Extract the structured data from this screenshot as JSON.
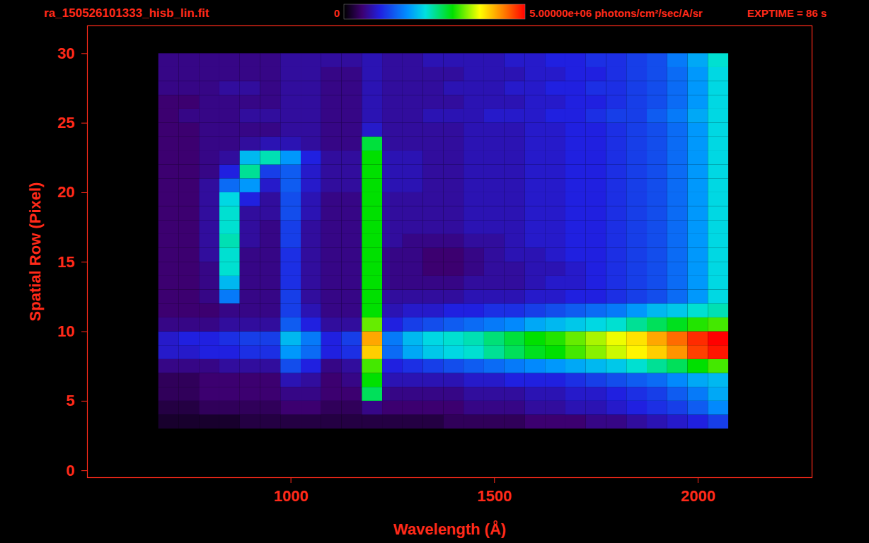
{
  "chart_data": {
    "type": "heatmap",
    "title": "ra_150526101333_hisb_lin.fit",
    "annotation": "EXPTIME = 86 s",
    "x_label": "Wavelength (Å)",
    "y_label": "Spatial Row (Pixel)",
    "xlim": [
      500,
      2280
    ],
    "xticks": [
      1000,
      1500,
      2000
    ],
    "ylim": [
      -0.5,
      32
    ],
    "yticks": [
      0,
      5,
      10,
      15,
      20,
      25,
      30
    ],
    "grid": false,
    "colorbar": {
      "range": [
        0,
        5000000
      ],
      "ticks": [
        0,
        {
          "value": 5000000,
          "label": "5.00000e+06"
        }
      ],
      "label": "photons/cm²/sec/A/sr"
    },
    "x_edges": [
      675,
      725,
      775,
      825,
      875,
      925,
      975,
      1025,
      1075,
      1125,
      1175,
      1225,
      1275,
      1325,
      1375,
      1425,
      1475,
      1525,
      1575,
      1625,
      1675,
      1725,
      1775,
      1825,
      1875,
      1925,
      1975,
      2025,
      2075
    ],
    "y_edges": [
      3,
      4,
      5,
      6,
      7,
      8,
      9,
      10,
      11,
      12,
      13,
      14,
      15,
      16,
      17,
      18,
      19,
      20,
      21,
      22,
      23,
      24,
      25,
      26,
      27,
      28,
      29,
      30
    ],
    "cells": [
      [
        200000.0,
        200000.0,
        200000.0,
        200000.0,
        300000.0,
        300000.0,
        300000.0,
        300000.0,
        300000.0,
        300000.0,
        300000.0,
        300000.0,
        300000.0,
        300000.0,
        400000.0,
        400000.0,
        400000.0,
        400000.0,
        500000.0,
        500000.0,
        500000.0,
        600000.0,
        600000.0,
        700000.0,
        800000.0,
        900000.0,
        1000000.0,
        1200000.0
      ],
      [
        300000.0,
        300000.0,
        400000.0,
        400000.0,
        400000.0,
        400000.0,
        500000.0,
        500000.0,
        400000.0,
        400000.0,
        600000.0,
        500000.0,
        500000.0,
        500000.0,
        500000.0,
        600000.0,
        600000.0,
        600000.0,
        700000.0,
        700000.0,
        800000.0,
        800000.0,
        900000.0,
        1000000.0,
        1100000.0,
        1200000.0,
        1400000.0,
        1700000.0
      ],
      [
        400000.0,
        400000.0,
        500000.0,
        500000.0,
        500000.0,
        500000.0,
        600000.0,
        600000.0,
        500000.0,
        500000.0,
        2700000.0,
        600000.0,
        600000.0,
        600000.0,
        600000.0,
        700000.0,
        700000.0,
        700000.0,
        800000.0,
        800000.0,
        900000.0,
        900000.0,
        1000000.0,
        1100000.0,
        1200000.0,
        1400000.0,
        1600000.0,
        1900000.0
      ],
      [
        400000.0,
        400000.0,
        500000.0,
        500000.0,
        500000.0,
        500000.0,
        800000.0,
        700000.0,
        500000.0,
        600000.0,
        3000000.0,
        800000.0,
        800000.0,
        800000.0,
        800000.0,
        900000.0,
        900000.0,
        1000000.0,
        1000000.0,
        1000000.0,
        1100000.0,
        1200000.0,
        1300000.0,
        1400000.0,
        1500000.0,
        1700000.0,
        1900000.0,
        2000000.0
      ],
      [
        600000.0,
        600000.0,
        600000.0,
        700000.0,
        700000.0,
        700000.0,
        1300000.0,
        1000000.0,
        600000.0,
        700000.0,
        3200000.0,
        1000000.0,
        1100000.0,
        1200000.0,
        1300000.0,
        1400000.0,
        1500000.0,
        1600000.0,
        1700000.0,
        1800000.0,
        1900000.0,
        2000000.0,
        2100000.0,
        2300000.0,
        2500000.0,
        2700000.0,
        3000000.0,
        3200000.0
      ],
      [
        900000.0,
        900000.0,
        1000000.0,
        1000000.0,
        1100000.0,
        1100000.0,
        1800000.0,
        1500000.0,
        1000000.0,
        1100000.0,
        4000000.0,
        1500000.0,
        1900000.0,
        2100000.0,
        2200000.0,
        2300000.0,
        2500000.0,
        2700000.0,
        2900000.0,
        3000000.0,
        3200000.0,
        3400000.0,
        3600000.0,
        3800000.0,
        4000000.0,
        4300000.0,
        4700000.0,
        4900000.0
      ],
      [
        900000.0,
        1000000.0,
        1000000.0,
        1100000.0,
        1200000.0,
        1200000.0,
        2000000.0,
        1600000.0,
        1000000.0,
        1200000.0,
        4200000.0,
        1600000.0,
        2000000.0,
        2200000.0,
        2300000.0,
        2400000.0,
        2600000.0,
        2800000.0,
        3000000.0,
        3100000.0,
        3300000.0,
        3500000.0,
        3700000.0,
        3900000.0,
        4200000.0,
        4500000.0,
        4800000.0,
        5000000.0
      ],
      [
        600000.0,
        600000.0,
        600000.0,
        700000.0,
        700000.0,
        700000.0,
        1400000.0,
        1000000.0,
        700000.0,
        700000.0,
        3300000.0,
        1000000.0,
        1200000.0,
        1300000.0,
        1400000.0,
        1500000.0,
        1600000.0,
        1700000.0,
        1900000.0,
        2000000.0,
        2100000.0,
        2200000.0,
        2300000.0,
        2500000.0,
        2700000.0,
        2900000.0,
        3100000.0,
        3200000.0
      ],
      [
        500000.0,
        500000.0,
        500000.0,
        600000.0,
        600000.0,
        600000.0,
        1200000.0,
        800000.0,
        600000.0,
        600000.0,
        3000000.0,
        800000.0,
        900000.0,
        900000.0,
        1000000.0,
        1000000.0,
        1100000.0,
        1100000.0,
        1200000.0,
        1300000.0,
        1400000.0,
        1500000.0,
        1600000.0,
        1800000.0,
        2000000.0,
        2100000.0,
        2300000.0,
        2400000.0
      ],
      [
        500000.0,
        500000.0,
        600000.0,
        1600000.0,
        600000.0,
        600000.0,
        1200000.0,
        700000.0,
        600000.0,
        600000.0,
        3000000.0,
        700000.0,
        700000.0,
        700000.0,
        700000.0,
        800000.0,
        800000.0,
        800000.0,
        900000.0,
        900000.0,
        1000000.0,
        1000000.0,
        1100000.0,
        1200000.0,
        1300000.0,
        1500000.0,
        1800000.0,
        2200000.0
      ],
      [
        500000.0,
        500000.0,
        600000.0,
        2000000.0,
        600000.0,
        600000.0,
        1100000.0,
        700000.0,
        600000.0,
        600000.0,
        3000000.0,
        600000.0,
        600000.0,
        600000.0,
        600000.0,
        700000.0,
        700000.0,
        700000.0,
        800000.0,
        900000.0,
        900000.0,
        1000000.0,
        1100000.0,
        1200000.0,
        1300000.0,
        1500000.0,
        1800000.0,
        2200000.0
      ],
      [
        500000.0,
        500000.0,
        600000.0,
        2300000.0,
        600000.0,
        600000.0,
        1100000.0,
        700000.0,
        600000.0,
        600000.0,
        3000000.0,
        600000.0,
        600000.0,
        500000.0,
        500000.0,
        600000.0,
        700000.0,
        700000.0,
        800000.0,
        800000.0,
        900000.0,
        1000000.0,
        1100000.0,
        1200000.0,
        1300000.0,
        1500000.0,
        1800000.0,
        2200000.0
      ],
      [
        500000.0,
        500000.0,
        700000.0,
        2300000.0,
        600000.0,
        600000.0,
        1100000.0,
        700000.0,
        600000.0,
        600000.0,
        3000000.0,
        600000.0,
        600000.0,
        500000.0,
        500000.0,
        600000.0,
        700000.0,
        800000.0,
        800000.0,
        900000.0,
        1000000.0,
        1000000.0,
        1100000.0,
        1200000.0,
        1300000.0,
        1500000.0,
        1800000.0,
        2200000.0
      ],
      [
        500000.0,
        500000.0,
        700000.0,
        2400000.0,
        700000.0,
        600000.0,
        1200000.0,
        700000.0,
        600000.0,
        600000.0,
        3000000.0,
        700000.0,
        600000.0,
        600000.0,
        600000.0,
        700000.0,
        700000.0,
        800000.0,
        900000.0,
        900000.0,
        1000000.0,
        1000000.0,
        1100000.0,
        1200000.0,
        1300000.0,
        1500000.0,
        1800000.0,
        2200000.0
      ],
      [
        500000.0,
        500000.0,
        700000.0,
        2300000.0,
        700000.0,
        600000.0,
        1200000.0,
        700000.0,
        600000.0,
        600000.0,
        3000000.0,
        700000.0,
        700000.0,
        700000.0,
        700000.0,
        800000.0,
        800000.0,
        800000.0,
        900000.0,
        900000.0,
        1000000.0,
        1000000.0,
        1100000.0,
        1200000.0,
        1300000.0,
        1500000.0,
        1800000.0,
        2200000.0
      ],
      [
        500000.0,
        500000.0,
        700000.0,
        2300000.0,
        700000.0,
        700000.0,
        1300000.0,
        800000.0,
        600000.0,
        600000.0,
        3000000.0,
        700000.0,
        700000.0,
        700000.0,
        700000.0,
        800000.0,
        800000.0,
        800000.0,
        900000.0,
        900000.0,
        1000000.0,
        1000000.0,
        1100000.0,
        1200000.0,
        1300000.0,
        1500000.0,
        1800000.0,
        2200000.0
      ],
      [
        500000.0,
        500000.0,
        700000.0,
        2200000.0,
        1000000.0,
        700000.0,
        1300000.0,
        800000.0,
        600000.0,
        600000.0,
        3000000.0,
        700000.0,
        700000.0,
        700000.0,
        700000.0,
        800000.0,
        800000.0,
        800000.0,
        900000.0,
        900000.0,
        1000000.0,
        1000000.0,
        1100000.0,
        1200000.0,
        1300000.0,
        1500000.0,
        1800000.0,
        2200000.0
      ],
      [
        500000.0,
        500000.0,
        700000.0,
        1500000.0,
        1800000.0,
        900000.0,
        1400000.0,
        900000.0,
        700000.0,
        700000.0,
        3000000.0,
        800000.0,
        800000.0,
        700000.0,
        700000.0,
        800000.0,
        800000.0,
        800000.0,
        900000.0,
        900000.0,
        1000000.0,
        1000000.0,
        1100000.0,
        1200000.0,
        1300000.0,
        1500000.0,
        1800000.0,
        2200000.0
      ],
      [
        500000.0,
        500000.0,
        600000.0,
        1000000.0,
        2500000.0,
        1200000.0,
        1400000.0,
        900000.0,
        700000.0,
        700000.0,
        3000000.0,
        800000.0,
        800000.0,
        700000.0,
        700000.0,
        800000.0,
        800000.0,
        800000.0,
        900000.0,
        900000.0,
        1000000.0,
        1000000.0,
        1100000.0,
        1200000.0,
        1300000.0,
        1500000.0,
        1800000.0,
        2200000.0
      ],
      [
        500000.0,
        500000.0,
        600000.0,
        700000.0,
        2000000.0,
        2400000.0,
        1800000.0,
        1000000.0,
        700000.0,
        700000.0,
        3000000.0,
        800000.0,
        800000.0,
        700000.0,
        700000.0,
        800000.0,
        800000.0,
        800000.0,
        900000.0,
        900000.0,
        1000000.0,
        1000000.0,
        1100000.0,
        1200000.0,
        1300000.0,
        1500000.0,
        1800000.0,
        2200000.0
      ],
      [
        500000.0,
        500000.0,
        600000.0,
        600000.0,
        700000.0,
        800000.0,
        800000.0,
        700000.0,
        600000.0,
        600000.0,
        2800000.0,
        700000.0,
        700000.0,
        700000.0,
        700000.0,
        800000.0,
        800000.0,
        800000.0,
        900000.0,
        900000.0,
        1000000.0,
        1000000.0,
        1100000.0,
        1200000.0,
        1300000.0,
        1500000.0,
        1800000.0,
        2200000.0
      ],
      [
        500000.0,
        500000.0,
        600000.0,
        600000.0,
        600000.0,
        600000.0,
        700000.0,
        700000.0,
        600000.0,
        600000.0,
        900000.0,
        700000.0,
        700000.0,
        700000.0,
        700000.0,
        800000.0,
        800000.0,
        800000.0,
        900000.0,
        900000.0,
        1000000.0,
        1000000.0,
        1100000.0,
        1200000.0,
        1300000.0,
        1500000.0,
        1800000.0,
        2200000.0
      ],
      [
        500000.0,
        600000.0,
        600000.0,
        600000.0,
        700000.0,
        700000.0,
        700000.0,
        700000.0,
        600000.0,
        600000.0,
        800000.0,
        700000.0,
        700000.0,
        800000.0,
        800000.0,
        800000.0,
        900000.0,
        900000.0,
        900000.0,
        1000000.0,
        1000000.0,
        1100000.0,
        1200000.0,
        1200000.0,
        1400000.0,
        1600000.0,
        1900000.0,
        2200000.0
      ],
      [
        500000.0,
        500000.0,
        600000.0,
        600000.0,
        600000.0,
        600000.0,
        700000.0,
        700000.0,
        600000.0,
        600000.0,
        800000.0,
        700000.0,
        700000.0,
        700000.0,
        700000.0,
        800000.0,
        800000.0,
        800000.0,
        900000.0,
        900000.0,
        1000000.0,
        1000000.0,
        1100000.0,
        1200000.0,
        1300000.0,
        1500000.0,
        1800000.0,
        2200000.0
      ],
      [
        600000.0,
        600000.0,
        600000.0,
        700000.0,
        700000.0,
        600000.0,
        700000.0,
        700000.0,
        600000.0,
        600000.0,
        800000.0,
        700000.0,
        700000.0,
        700000.0,
        800000.0,
        800000.0,
        800000.0,
        900000.0,
        900000.0,
        1000000.0,
        1000000.0,
        1100000.0,
        1100000.0,
        1200000.0,
        1300000.0,
        1500000.0,
        1800000.0,
        2200000.0
      ],
      [
        600000.0,
        600000.0,
        600000.0,
        600000.0,
        600000.0,
        600000.0,
        700000.0,
        700000.0,
        600000.0,
        600000.0,
        800000.0,
        700000.0,
        700000.0,
        700000.0,
        700000.0,
        800000.0,
        800000.0,
        800000.0,
        900000.0,
        900000.0,
        1000000.0,
        1000000.0,
        1100000.0,
        1200000.0,
        1300000.0,
        1500000.0,
        1800000.0,
        2200000.0
      ],
      [
        600000.0,
        600000.0,
        600000.0,
        600000.0,
        600000.0,
        600000.0,
        700000.0,
        700000.0,
        700000.0,
        700000.0,
        800000.0,
        700000.0,
        700000.0,
        800000.0,
        800000.0,
        800000.0,
        800000.0,
        900000.0,
        900000.0,
        1000000.0,
        1000000.0,
        1100000.0,
        1100000.0,
        1200000.0,
        1300000.0,
        1600000.0,
        1900000.0,
        2300000.0
      ]
    ]
  }
}
